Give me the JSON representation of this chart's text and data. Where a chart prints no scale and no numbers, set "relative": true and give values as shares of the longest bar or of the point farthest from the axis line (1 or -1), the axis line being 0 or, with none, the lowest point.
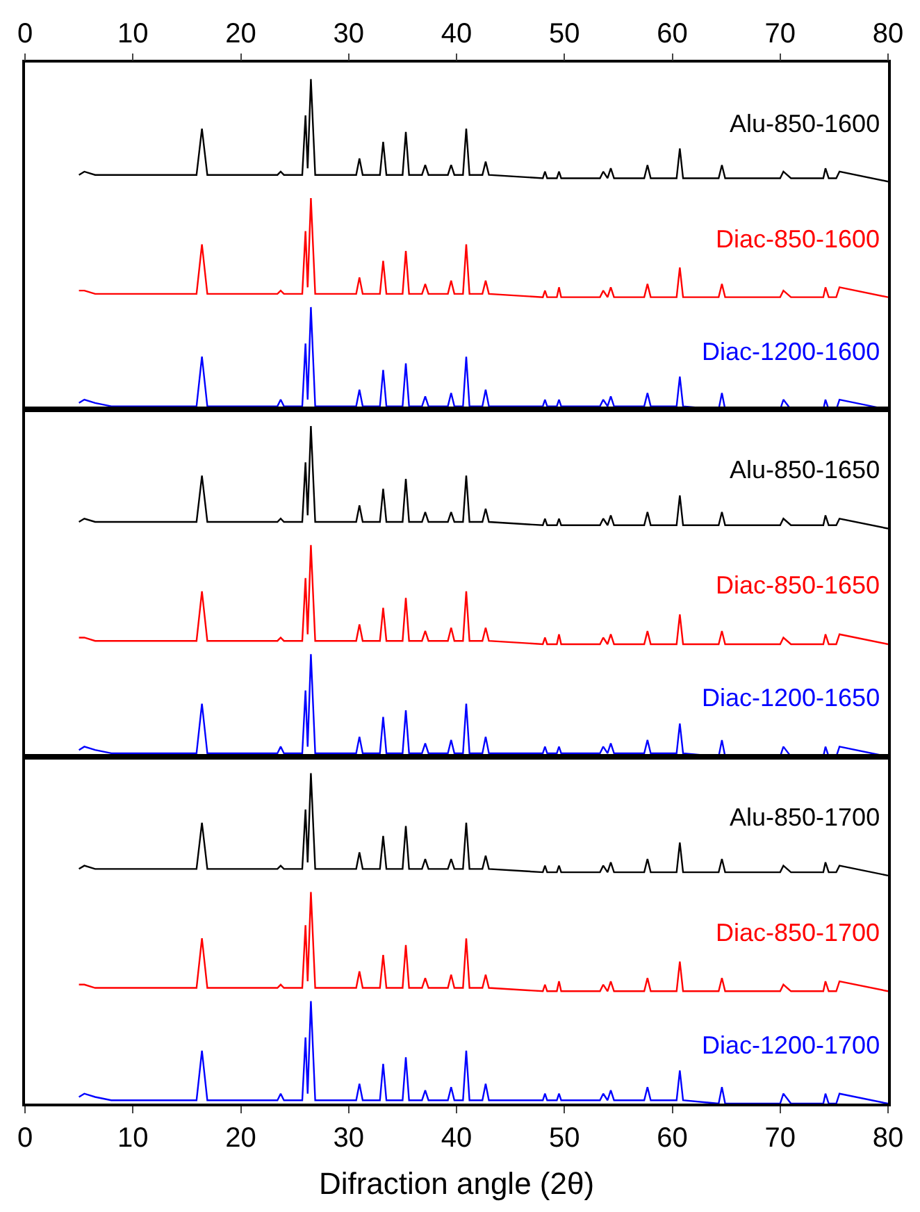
{
  "chart_data": [
    {
      "type": "line",
      "relative": true,
      "grid": false,
      "tick_labels": "x2",
      "x2lim": [
        0,
        80
      ],
      "x2ticks": [
        0,
        10,
        20,
        30,
        40,
        50,
        60,
        70,
        80
      ],
      "xlim": [
        0,
        80
      ],
      "x": [
        5,
        5.5,
        6.5,
        8,
        15.9,
        16.4,
        16.9,
        23.4,
        23.7,
        24,
        25.7,
        26.0,
        26.2,
        26.5,
        26.9,
        30.7,
        31.0,
        31.3,
        32.9,
        33.2,
        33.5,
        35.0,
        35.3,
        35.6,
        36.8,
        37.1,
        37.4,
        39.2,
        39.5,
        39.8,
        40.6,
        40.9,
        41.2,
        42.4,
        42.7,
        43.0,
        48.0,
        48.2,
        48.4,
        49.3,
        49.5,
        49.7,
        53.3,
        53.6,
        54.0,
        54.3,
        54.6,
        57.4,
        57.7,
        58.0,
        60.4,
        60.7,
        61.0,
        64.3,
        64.6,
        64.9,
        70.0,
        70.3,
        71.0,
        74.0,
        74.2,
        74.5,
        75.2,
        75.5,
        80
      ],
      "series": [
        {
          "name": "Alu-850-1600",
          "color": "#000000",
          "values": [
            0.71,
            0.72,
            0.71,
            0.71,
            0.71,
            0.85,
            0.71,
            0.71,
            0.72,
            0.71,
            0.71,
            0.89,
            0.73,
            1.0,
            0.71,
            0.71,
            0.76,
            0.71,
            0.71,
            0.81,
            0.71,
            0.71,
            0.84,
            0.71,
            0.71,
            0.74,
            0.71,
            0.71,
            0.74,
            0.71,
            0.71,
            0.85,
            0.71,
            0.71,
            0.75,
            0.71,
            0.7,
            0.72,
            0.7,
            0.7,
            0.72,
            0.7,
            0.7,
            0.72,
            0.7,
            0.73,
            0.7,
            0.7,
            0.74,
            0.7,
            0.7,
            0.79,
            0.7,
            0.7,
            0.74,
            0.7,
            0.7,
            0.72,
            0.7,
            0.7,
            0.73,
            0.7,
            0.7,
            0.72,
            0.69
          ]
        },
        {
          "name": "Diac-850-1600",
          "color": "#ff0000",
          "values": [
            0.36,
            0.36,
            0.35,
            0.35,
            0.35,
            0.5,
            0.35,
            0.35,
            0.36,
            0.35,
            0.35,
            0.54,
            0.37,
            0.64,
            0.35,
            0.35,
            0.4,
            0.35,
            0.35,
            0.45,
            0.35,
            0.35,
            0.48,
            0.35,
            0.35,
            0.38,
            0.35,
            0.35,
            0.39,
            0.35,
            0.35,
            0.5,
            0.35,
            0.35,
            0.39,
            0.35,
            0.34,
            0.36,
            0.34,
            0.34,
            0.37,
            0.34,
            0.34,
            0.36,
            0.34,
            0.37,
            0.34,
            0.34,
            0.38,
            0.34,
            0.34,
            0.43,
            0.34,
            0.34,
            0.38,
            0.34,
            0.34,
            0.36,
            0.34,
            0.34,
            0.37,
            0.34,
            0.34,
            0.37,
            0.34
          ]
        },
        {
          "name": "Diac-1200-1600",
          "color": "#0000ff",
          "values": [
            0.02,
            0.03,
            0.02,
            0.01,
            0.01,
            0.16,
            0.01,
            0.01,
            0.03,
            0.01,
            0.01,
            0.2,
            0.03,
            0.31,
            0.01,
            0.01,
            0.06,
            0.01,
            0.01,
            0.12,
            0.01,
            0.01,
            0.14,
            0.01,
            0.01,
            0.04,
            0.01,
            0.01,
            0.05,
            0.01,
            0.01,
            0.16,
            0.01,
            0.01,
            0.06,
            0.01,
            0.01,
            0.03,
            0.01,
            0.01,
            0.03,
            0.01,
            0.01,
            0.03,
            0.01,
            0.04,
            0.01,
            0.01,
            0.05,
            0.01,
            0.01,
            0.1,
            0.01,
            0,
            0.05,
            0,
            0,
            0.03,
            0,
            0,
            0.03,
            0,
            0,
            0.03,
            0
          ]
        }
      ]
    },
    {
      "type": "line",
      "relative": true,
      "grid": false,
      "tick_labels": false,
      "xlim": [
        0,
        80
      ],
      "x": [
        5,
        5.5,
        6.5,
        8,
        15.9,
        16.4,
        16.9,
        23.4,
        23.7,
        24,
        25.7,
        26.0,
        26.2,
        26.5,
        26.9,
        30.7,
        31.0,
        31.3,
        32.9,
        33.2,
        33.5,
        35.0,
        35.3,
        35.6,
        36.8,
        37.1,
        37.4,
        39.2,
        39.5,
        39.8,
        40.6,
        40.9,
        41.2,
        42.4,
        42.7,
        43.0,
        48.0,
        48.2,
        48.4,
        49.3,
        49.5,
        49.7,
        53.3,
        53.6,
        54.0,
        54.3,
        54.6,
        57.4,
        57.7,
        58.0,
        60.4,
        60.7,
        61.0,
        64.3,
        64.6,
        64.9,
        70.0,
        70.3,
        71.0,
        74.0,
        74.2,
        74.5,
        75.2,
        75.5,
        80
      ],
      "series": [
        {
          "name": "Alu-850-1650",
          "color": "#000000",
          "values": [
            0.71,
            0.72,
            0.71,
            0.71,
            0.71,
            0.85,
            0.71,
            0.71,
            0.72,
            0.71,
            0.71,
            0.89,
            0.73,
            1.0,
            0.71,
            0.71,
            0.76,
            0.71,
            0.71,
            0.81,
            0.71,
            0.71,
            0.84,
            0.71,
            0.71,
            0.74,
            0.71,
            0.71,
            0.74,
            0.71,
            0.71,
            0.85,
            0.71,
            0.71,
            0.75,
            0.71,
            0.7,
            0.72,
            0.7,
            0.7,
            0.72,
            0.7,
            0.7,
            0.72,
            0.7,
            0.73,
            0.7,
            0.7,
            0.74,
            0.7,
            0.7,
            0.79,
            0.7,
            0.7,
            0.74,
            0.7,
            0.7,
            0.72,
            0.7,
            0.7,
            0.73,
            0.7,
            0.7,
            0.72,
            0.69
          ]
        },
        {
          "name": "Diac-850-1650",
          "color": "#ff0000",
          "values": [
            0.36,
            0.36,
            0.35,
            0.35,
            0.35,
            0.5,
            0.35,
            0.35,
            0.36,
            0.35,
            0.35,
            0.54,
            0.37,
            0.64,
            0.35,
            0.35,
            0.4,
            0.35,
            0.35,
            0.45,
            0.35,
            0.35,
            0.48,
            0.35,
            0.35,
            0.38,
            0.35,
            0.35,
            0.39,
            0.35,
            0.35,
            0.5,
            0.35,
            0.35,
            0.39,
            0.35,
            0.34,
            0.36,
            0.34,
            0.34,
            0.37,
            0.34,
            0.34,
            0.36,
            0.34,
            0.37,
            0.34,
            0.34,
            0.38,
            0.34,
            0.34,
            0.43,
            0.34,
            0.34,
            0.38,
            0.34,
            0.34,
            0.36,
            0.34,
            0.34,
            0.37,
            0.34,
            0.34,
            0.37,
            0.34
          ]
        },
        {
          "name": "Diac-1200-1650",
          "color": "#0000ff",
          "values": [
            0.02,
            0.03,
            0.02,
            0.01,
            0.01,
            0.16,
            0.01,
            0.01,
            0.03,
            0.01,
            0.01,
            0.2,
            0.03,
            0.31,
            0.01,
            0.01,
            0.06,
            0.01,
            0.01,
            0.12,
            0.01,
            0.01,
            0.14,
            0.01,
            0.01,
            0.04,
            0.01,
            0.01,
            0.05,
            0.01,
            0.01,
            0.16,
            0.01,
            0.01,
            0.06,
            0.01,
            0.01,
            0.03,
            0.01,
            0.01,
            0.03,
            0.01,
            0.01,
            0.03,
            0.01,
            0.04,
            0.01,
            0.01,
            0.05,
            0.01,
            0.01,
            0.1,
            0.01,
            0,
            0.05,
            0,
            0,
            0.03,
            0,
            0,
            0.03,
            0,
            0,
            0.03,
            0
          ]
        }
      ]
    },
    {
      "type": "line",
      "relative": true,
      "grid": false,
      "tick_labels": "x",
      "xlim": [
        0,
        80
      ],
      "xticks": [
        0,
        10,
        20,
        30,
        40,
        50,
        60,
        70,
        80
      ],
      "xlabel": "Difraction angle (2θ)",
      "x": [
        5,
        5.5,
        6.5,
        8,
        15.9,
        16.4,
        16.9,
        23.4,
        23.7,
        24,
        25.7,
        26.0,
        26.2,
        26.5,
        26.9,
        30.7,
        31.0,
        31.3,
        32.9,
        33.2,
        33.5,
        35.0,
        35.3,
        35.6,
        36.8,
        37.1,
        37.4,
        39.2,
        39.5,
        39.8,
        40.6,
        40.9,
        41.2,
        42.4,
        42.7,
        43.0,
        48.0,
        48.2,
        48.4,
        49.3,
        49.5,
        49.7,
        53.3,
        53.6,
        54.0,
        54.3,
        54.6,
        57.4,
        57.7,
        58.0,
        60.4,
        60.7,
        61.0,
        64.3,
        64.6,
        64.9,
        70.0,
        70.3,
        71.0,
        74.0,
        74.2,
        74.5,
        75.2,
        75.5,
        80
      ],
      "series": [
        {
          "name": "Alu-850-1700",
          "color": "#000000",
          "values": [
            0.71,
            0.72,
            0.71,
            0.71,
            0.71,
            0.85,
            0.71,
            0.71,
            0.72,
            0.71,
            0.71,
            0.89,
            0.73,
            1.0,
            0.71,
            0.71,
            0.76,
            0.71,
            0.71,
            0.81,
            0.71,
            0.71,
            0.84,
            0.71,
            0.71,
            0.74,
            0.71,
            0.71,
            0.74,
            0.71,
            0.71,
            0.85,
            0.71,
            0.71,
            0.75,
            0.71,
            0.7,
            0.72,
            0.7,
            0.7,
            0.72,
            0.7,
            0.7,
            0.72,
            0.7,
            0.73,
            0.7,
            0.7,
            0.74,
            0.7,
            0.7,
            0.79,
            0.7,
            0.7,
            0.74,
            0.7,
            0.7,
            0.72,
            0.7,
            0.7,
            0.73,
            0.7,
            0.7,
            0.72,
            0.69
          ]
        },
        {
          "name": "Diac-850-1700",
          "color": "#ff0000",
          "values": [
            0.36,
            0.36,
            0.35,
            0.35,
            0.35,
            0.5,
            0.35,
            0.35,
            0.36,
            0.35,
            0.35,
            0.54,
            0.37,
            0.64,
            0.35,
            0.35,
            0.4,
            0.35,
            0.35,
            0.45,
            0.35,
            0.35,
            0.48,
            0.35,
            0.35,
            0.38,
            0.35,
            0.35,
            0.39,
            0.35,
            0.35,
            0.5,
            0.35,
            0.35,
            0.39,
            0.35,
            0.34,
            0.36,
            0.34,
            0.34,
            0.37,
            0.34,
            0.34,
            0.36,
            0.34,
            0.37,
            0.34,
            0.34,
            0.38,
            0.34,
            0.34,
            0.43,
            0.34,
            0.34,
            0.38,
            0.34,
            0.34,
            0.36,
            0.34,
            0.34,
            0.37,
            0.34,
            0.34,
            0.37,
            0.34
          ]
        },
        {
          "name": "Diac-1200-1700",
          "color": "#0000ff",
          "values": [
            0.02,
            0.03,
            0.02,
            0.01,
            0.01,
            0.16,
            0.01,
            0.01,
            0.03,
            0.01,
            0.01,
            0.2,
            0.03,
            0.31,
            0.01,
            0.01,
            0.06,
            0.01,
            0.01,
            0.12,
            0.01,
            0.01,
            0.14,
            0.01,
            0.01,
            0.04,
            0.01,
            0.01,
            0.05,
            0.01,
            0.01,
            0.16,
            0.01,
            0.01,
            0.06,
            0.01,
            0.01,
            0.03,
            0.01,
            0.01,
            0.03,
            0.01,
            0.01,
            0.03,
            0.01,
            0.04,
            0.01,
            0.01,
            0.05,
            0.01,
            0.01,
            0.1,
            0.01,
            0,
            0.05,
            0,
            0,
            0.03,
            0,
            0,
            0.03,
            0,
            0,
            0.03,
            0
          ]
        }
      ]
    }
  ]
}
